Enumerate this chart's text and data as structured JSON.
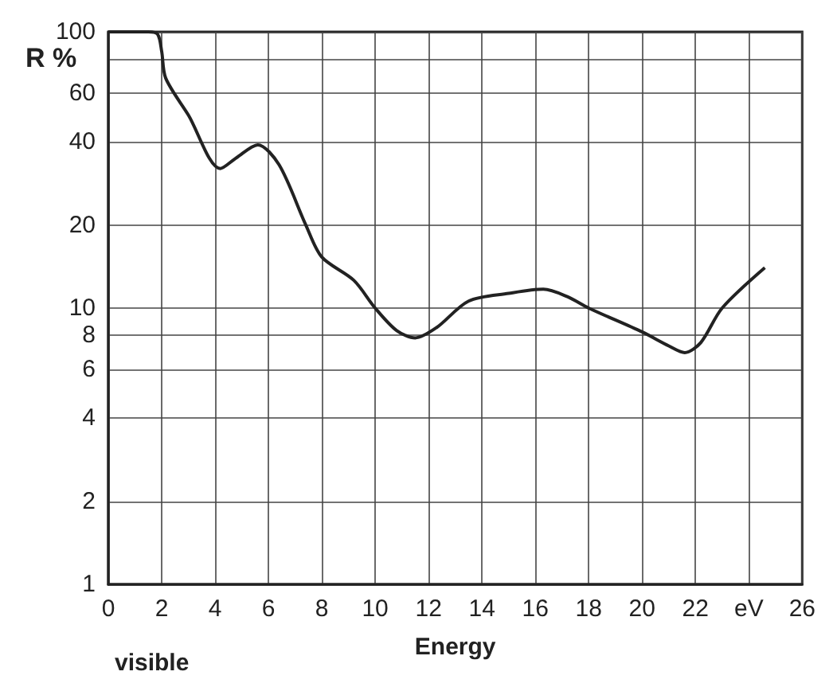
{
  "chart_data": {
    "type": "line",
    "xlabel": "Energy",
    "ylabel": "R %",
    "annotations": [
      "visible"
    ],
    "x": [
      0,
      1.5,
      1.85,
      2.0,
      2.15,
      3.0,
      4.2,
      4.8,
      5.6,
      6.4,
      7.4,
      8.0,
      9.2,
      10.0,
      10.8,
      11.5,
      12.3,
      13.5,
      15.0,
      16.3,
      17.2,
      18.0,
      20.0,
      21.0,
      21.6,
      22.2,
      23.0,
      24.6
    ],
    "series": [
      {
        "color": "#222222",
        "values": [
          100,
          100,
          98,
          85,
          68,
          50,
          32,
          35,
          39,
          33,
          20,
          15.3,
          12.6,
          10,
          8.3,
          7.8,
          8.5,
          10.6,
          11.3,
          11.7,
          11,
          10,
          8.2,
          7.3,
          6.9,
          7.5,
          10,
          14
        ]
      }
    ],
    "xlim": [
      0,
      26
    ],
    "xticks": [
      0,
      2,
      4,
      6,
      8,
      10,
      12,
      14,
      16,
      18,
      20,
      22,
      {
        "value": 24,
        "label": "eV"
      },
      26
    ],
    "ylim": [
      1,
      100
    ],
    "yticks": [
      1,
      2,
      4,
      6,
      8,
      10,
      20,
      40,
      60,
      {
        "value": 80,
        "label": null
      },
      100
    ],
    "log": true,
    "grid": true,
    "marker": "none",
    "line_style": "solid"
  }
}
